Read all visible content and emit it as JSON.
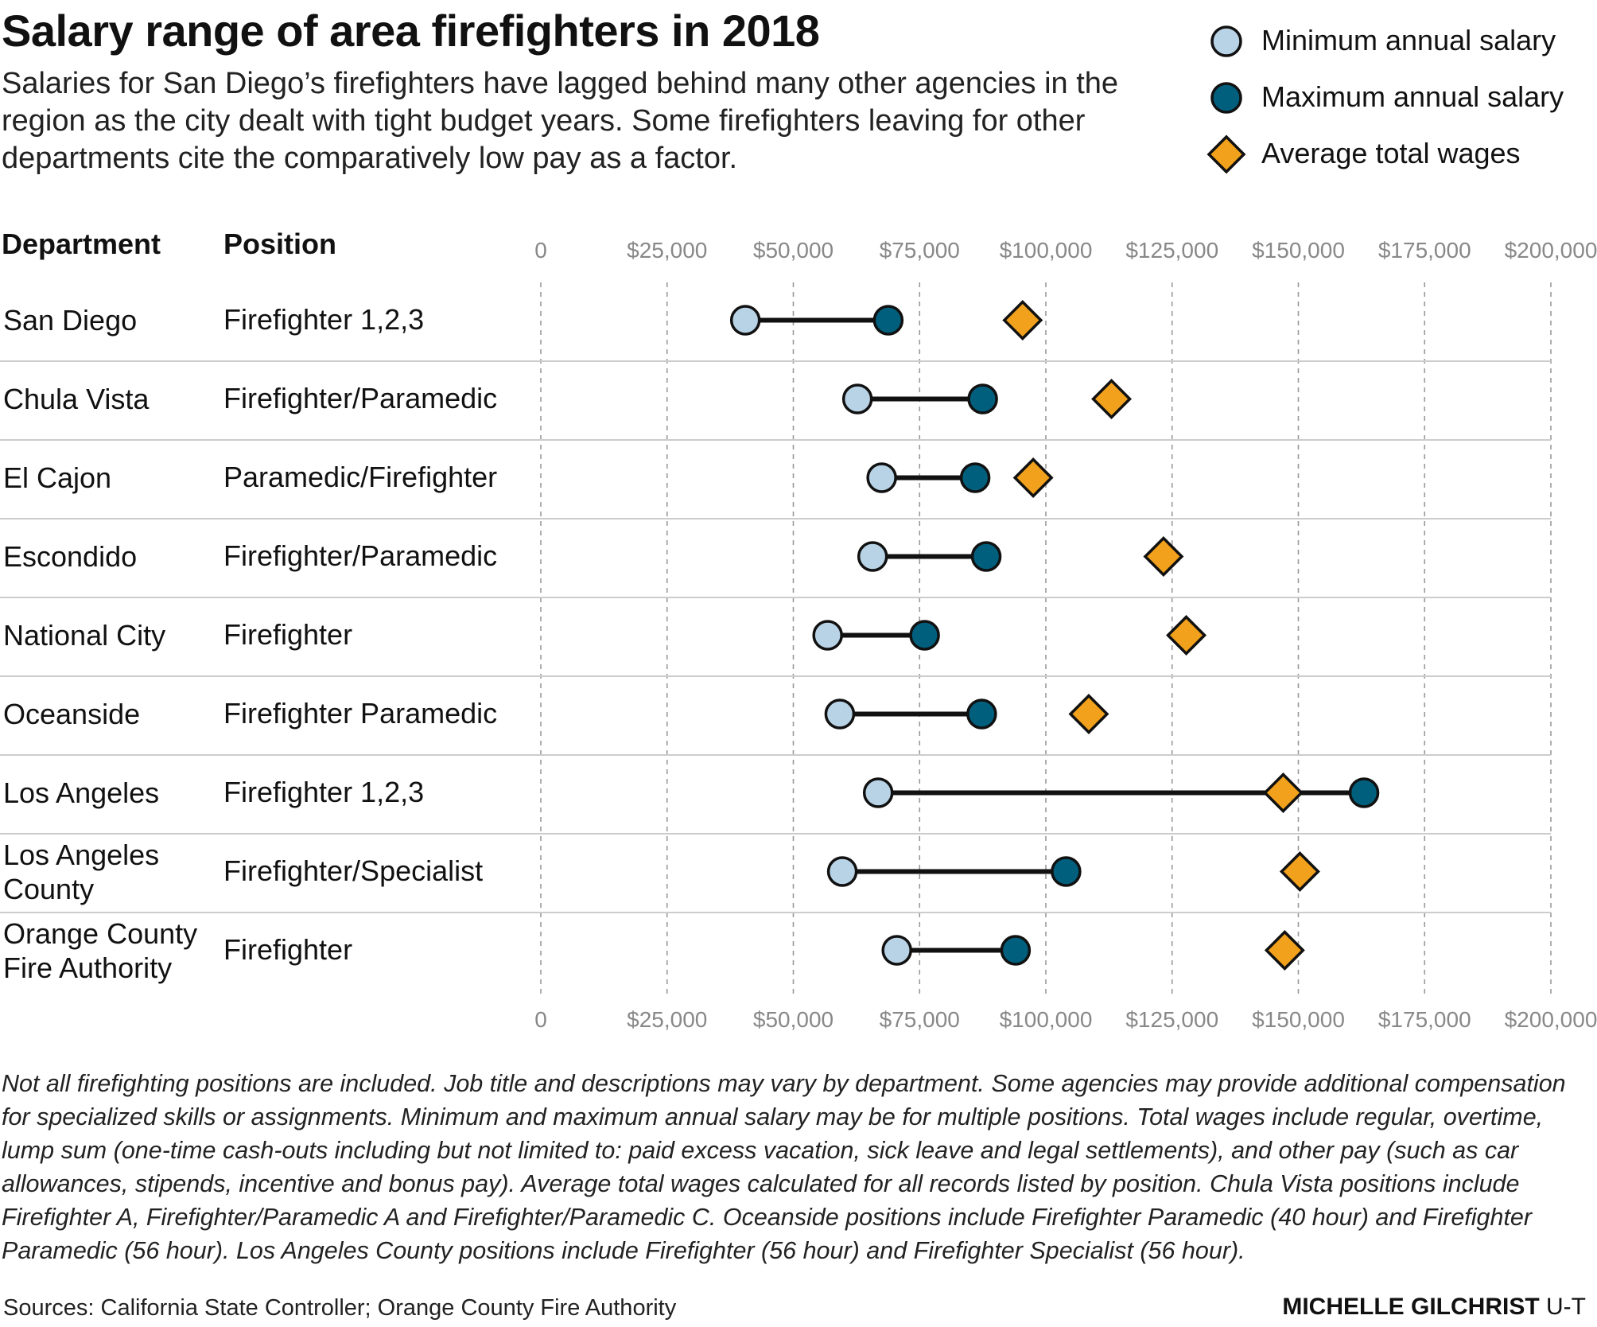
{
  "header": {
    "title": "Salary range of area firefighters in 2018",
    "subtitle": "Salaries for San Diego’s firefighters have lagged behind many other agencies in the region as the city dealt with tight budget years. Some firefighters leaving for other departments cite the comparatively low pay as a factor."
  },
  "legend": {
    "min_label": "Minimum annual salary",
    "max_label": "Maximum annual salary",
    "avg_label": "Average total wages"
  },
  "columns": {
    "department": "Department",
    "position": "Position"
  },
  "colors": {
    "min": "#b9d3e6",
    "max": "#005f7d",
    "avg": "#f1a11b",
    "line": "#111111",
    "grid": "#999999"
  },
  "chart_data": {
    "type": "dot-range",
    "xlim": [
      0,
      200000
    ],
    "x_ticks": [
      0,
      25000,
      50000,
      75000,
      100000,
      125000,
      150000,
      175000,
      200000
    ],
    "x_tick_labels": [
      "0",
      "$25,000",
      "$50,000",
      "$75,000",
      "$100,000",
      "$125,000",
      "$150,000",
      "$175,000",
      "$200,000"
    ],
    "series_names": [
      "Minimum annual salary",
      "Maximum annual salary",
      "Average total wages"
    ],
    "rows": [
      {
        "department": "San Diego",
        "position": "Firefighter 1,2,3",
        "min": 40500,
        "max": 68800,
        "avg": 95400
      },
      {
        "department": "Chula Vista",
        "position": "Firefighter/Paramedic",
        "min": 62700,
        "max": 87500,
        "avg": 113000
      },
      {
        "department": "El Cajon",
        "position": "Paramedic/Firefighter",
        "min": 67500,
        "max": 86000,
        "avg": 97500
      },
      {
        "department": "Escondido",
        "position": "Firefighter/Paramedic",
        "min": 65700,
        "max": 88200,
        "avg": 123300
      },
      {
        "department": "National City",
        "position": "Firefighter",
        "min": 56800,
        "max": 76000,
        "avg": 127800
      },
      {
        "department": "Oceanside",
        "position": "Firefighter Paramedic",
        "min": 59200,
        "max": 87300,
        "avg": 108500
      },
      {
        "department": "Los Angeles",
        "position": "Firefighter 1,2,3",
        "min": 66800,
        "max": 163000,
        "avg": 147000
      },
      {
        "department": "Los Angeles County",
        "position": "Firefighter/Specialist",
        "min": 59700,
        "max": 104000,
        "avg": 150300
      },
      {
        "department": "Orange County Fire Authority",
        "position": "Firefighter",
        "min": 70500,
        "max": 94000,
        "avg": 147300
      }
    ]
  },
  "footer": {
    "note": "Not all firefighting positions are included. Job title and descriptions may vary by department. Some agencies may provide additional compensation for specialized skills or assignments. Minimum and maximum annual salary may be for multiple positions. Total wages include regular, overtime, lump sum (one-time cash-outs including but not limited to: paid excess vacation, sick leave and legal settlements), and other pay (such as car allowances, stipends, incentive and bonus pay). Average total wages calculated for all records listed by position. Chula Vista positions include Firefighter A, Firefighter/Paramedic A and Firefighter/Paramedic C. Oceanside positions include Firefighter Paramedic (40 hour) and Firefighter Paramedic (56 hour). Los Angeles County positions include Firefighter (56 hour) and Firefighter Specialist (56 hour).",
    "sources": "Sources: California State Controller; Orange County Fire Authority",
    "credit_name": "MICHELLE GILCHRIST",
    "credit_org": "U-T"
  }
}
